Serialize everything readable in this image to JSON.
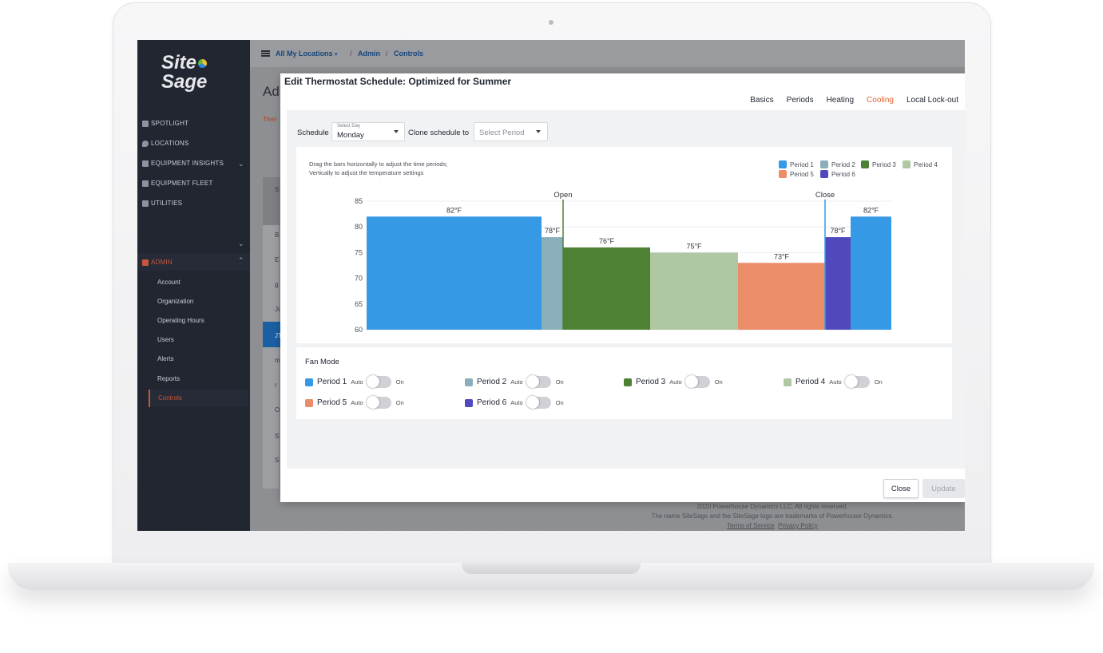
{
  "window": {
    "title": "SiteSage"
  },
  "logo": {
    "line1": "Site",
    "line2": "Sage"
  },
  "breadcrumb": {
    "location": "All My Locations",
    "admin": "Admin",
    "controls": "Controls",
    "sep": "/"
  },
  "sidebar": {
    "items": [
      {
        "label": "SPOTLIGHT",
        "icon": "spotlight-icon"
      },
      {
        "label": "LOCATIONS",
        "icon": "map-pin-icon"
      },
      {
        "label": "EQUIPMENT INSIGHTS",
        "icon": "bar-chart-icon"
      },
      {
        "label": "EQUIPMENT FLEET",
        "icon": "fleet-icon"
      },
      {
        "label": "UTILITIES",
        "icon": "utilities-icon"
      }
    ],
    "admin": {
      "label": "ADMIN",
      "icon": "admin-icon"
    },
    "admin_items": [
      {
        "label": "Account"
      },
      {
        "label": "Organization"
      },
      {
        "label": "Operating Hours"
      },
      {
        "label": "Users"
      },
      {
        "label": "Alerts"
      },
      {
        "label": "Reports"
      },
      {
        "label": "Controls"
      }
    ]
  },
  "background": {
    "title": "Ad",
    "tab": "Ther",
    "row_letters": [
      "S",
      "B",
      "E",
      "g",
      "Jo",
      "JT",
      "m",
      "r",
      "O",
      "S",
      "S"
    ],
    "footer": {
      "copyright": "2020 Powerhouse Dynamics LLC. All rights reserved.",
      "trademark": "The name SiteSage and the SiteSage logo are trademarks of Powerhouse Dynamics.",
      "terms": "Terms of Service",
      "privacy": "Privacy Policy"
    }
  },
  "modal": {
    "title": "Edit Thermostat Schedule: Optimized for Summer",
    "tabs": [
      {
        "label": "Basics",
        "active": false
      },
      {
        "label": "Periods",
        "active": false
      },
      {
        "label": "Heating",
        "active": false
      },
      {
        "label": "Cooling",
        "active": true
      },
      {
        "label": "Local Lock-out",
        "active": false
      }
    ],
    "schedule_label": "Schedule",
    "day_select": {
      "label": "Select Day",
      "value": "Monday"
    },
    "clone_label": "Clone schedule to",
    "period_select": {
      "placeholder": "Select Period"
    },
    "hint_line1": "Drag the bars horizontally to adjust the time periods;",
    "hint_line2": "Vertically to adjust the temperature settings",
    "fan": {
      "title": "Fan Mode",
      "auto_label": "Auto",
      "on_label": "On",
      "periods": [
        {
          "label": "Period 1",
          "mode": "Auto"
        },
        {
          "label": "Period 2",
          "mode": "Auto"
        },
        {
          "label": "Period 3",
          "mode": "Auto"
        },
        {
          "label": "Period 4",
          "mode": "Auto"
        },
        {
          "label": "Period 5",
          "mode": "Auto"
        },
        {
          "label": "Period 6",
          "mode": "Auto"
        }
      ]
    },
    "buttons": {
      "close": "Close",
      "update": "Update"
    }
  },
  "colors": {
    "period1": "#3699e6",
    "period2": "#8aaebb",
    "period3": "#4e8134",
    "period4": "#b0c7a3",
    "period5": "#ec8d69",
    "period6": "#5049bd",
    "accent": "#e2612f",
    "link": "#16467d"
  },
  "chart_data": {
    "type": "bar",
    "ylim": [
      60,
      85
    ],
    "yticks": [
      60,
      65,
      70,
      75,
      80,
      85
    ],
    "markers": [
      {
        "label": "Open"
      },
      {
        "label": "Close"
      }
    ],
    "legend": [
      "Period 1",
      "Period 2",
      "Period 3",
      "Period 4",
      "Period 5",
      "Period 6"
    ],
    "bars": [
      {
        "period": "Period 1",
        "value": 82,
        "label": "82°F"
      },
      {
        "period": "Period 2",
        "value": 78,
        "label": "78°F"
      },
      {
        "period": "Period 3",
        "value": 76,
        "label": "76°F"
      },
      {
        "period": "Period 4",
        "value": 75,
        "label": "75°F"
      },
      {
        "period": "Period 5",
        "value": 73,
        "label": "73°F"
      },
      {
        "period": "Period 6",
        "value": 78,
        "label": "78°F"
      },
      {
        "period": "Period 1",
        "value": 82,
        "label": "82°F"
      }
    ]
  }
}
